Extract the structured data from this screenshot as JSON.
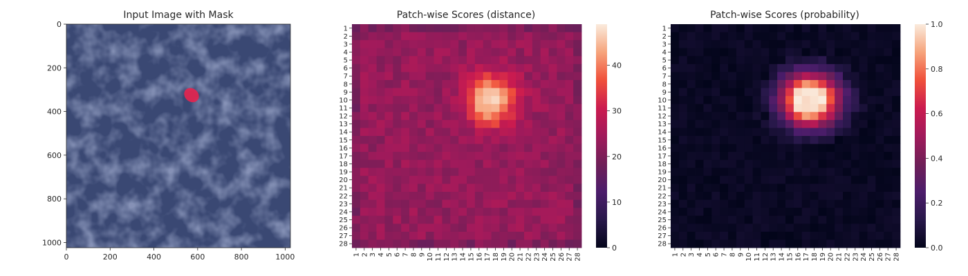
{
  "chart_data": [
    {
      "type": "image",
      "title": "Input Image with Mask",
      "xlim": [
        0,
        1024
      ],
      "ylim": [
        1024,
        0
      ],
      "xticks": [
        0,
        200,
        400,
        600,
        800,
        1000
      ],
      "yticks": [
        0,
        200,
        400,
        600,
        800,
        1000
      ],
      "background_color": "#3a4873",
      "mask": {
        "center": [
          572,
          325
        ],
        "radii": [
          36,
          30
        ],
        "color": "#e8244f"
      }
    },
    {
      "type": "heatmap",
      "title": "Patch-wise Scores (distance)",
      "rows": 28,
      "cols": 28,
      "tick_labels": [
        "1",
        "2",
        "3",
        "4",
        "5",
        "6",
        "7",
        "8",
        "9",
        "10",
        "11",
        "12",
        "13",
        "14",
        "15",
        "16",
        "17",
        "18",
        "19",
        "20",
        "21",
        "22",
        "23",
        "24",
        "25",
        "26",
        "27",
        "28"
      ],
      "colormap": "rocket",
      "vmin": 0,
      "vmax": 49,
      "colorbar_ticks": [
        0,
        10,
        20,
        30,
        40
      ],
      "base_value": 23,
      "peak": {
        "row": 10,
        "col": 17.5,
        "value": 49,
        "sigma_row": 2.2,
        "sigma_col": 2.1
      }
    },
    {
      "type": "heatmap",
      "title": "Patch-wise Scores (probability)",
      "rows": 28,
      "cols": 28,
      "tick_labels": [
        "1",
        "2",
        "3",
        "4",
        "5",
        "6",
        "7",
        "8",
        "9",
        "10",
        "11",
        "12",
        "13",
        "14",
        "15",
        "16",
        "17",
        "18",
        "19",
        "20",
        "21",
        "22",
        "23",
        "24",
        "25",
        "26",
        "27",
        "28"
      ],
      "colormap": "rocket",
      "vmin": 0.0,
      "vmax": 1.0,
      "colorbar_ticks": [
        "0.0",
        "0.2",
        "0.4",
        "0.6",
        "0.8",
        "1.0"
      ],
      "base_value": 0.0,
      "peak": {
        "row": 10,
        "col": 17.5,
        "value": 1.0,
        "sigma_row": 2.3,
        "sigma_col": 2.5
      }
    }
  ]
}
